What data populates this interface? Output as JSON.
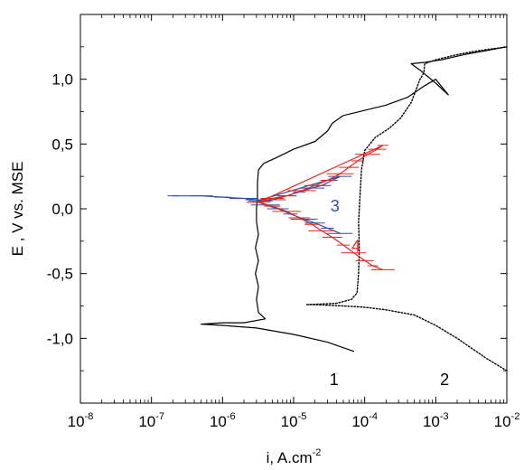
{
  "chart_data": {
    "type": "line",
    "title": "",
    "xlabel": "i, A.cm",
    "xlabel_exponent": "-2",
    "ylabel": "E , V vs. MSE",
    "x_scale": "log",
    "xlim": [
      1e-08,
      0.01
    ],
    "ylim": [
      -1.5,
      1.5
    ],
    "grid": false,
    "legend": "none",
    "x_ticks": [
      {
        "base": "10",
        "exp": "-8",
        "value": 1e-08
      },
      {
        "base": "10",
        "exp": "-7",
        "value": 1e-07
      },
      {
        "base": "10",
        "exp": "-6",
        "value": 1e-06
      },
      {
        "base": "10",
        "exp": "-5",
        "value": 1e-05
      },
      {
        "base": "10",
        "exp": "-4",
        "value": 0.0001
      },
      {
        "base": "10",
        "exp": "-3",
        "value": 0.001
      },
      {
        "base": "10",
        "exp": "-2",
        "value": 0.01
      }
    ],
    "y_ticks": [
      {
        "label": "-1,0",
        "value": -1.0
      },
      {
        "label": "-0,5",
        "value": -0.5
      },
      {
        "label": "0,0",
        "value": 0.0
      },
      {
        "label": "0,5",
        "value": 0.5
      },
      {
        "label": "1,0",
        "value": 1.0
      }
    ],
    "series": [
      {
        "label": "1",
        "color": "#000000",
        "style": "solid",
        "label_at": {
          "x": 3.2e-05,
          "y": -1.36
        },
        "points": [
          [
            7e-05,
            -1.1
          ],
          [
            3e-05,
            -1.03
          ],
          [
            1e-05,
            -0.97
          ],
          [
            3e-06,
            -0.92
          ],
          [
            1e-06,
            -0.9
          ],
          [
            5e-07,
            -0.89
          ],
          [
            1e-06,
            -0.88
          ],
          [
            2e-06,
            -0.88
          ],
          [
            4e-06,
            -0.85
          ],
          [
            3.2e-06,
            -0.8
          ],
          [
            3e-06,
            -0.7
          ],
          [
            3.2e-06,
            -0.6
          ],
          [
            2.9e-06,
            -0.5
          ],
          [
            3.2e-06,
            -0.4
          ],
          [
            2.9e-06,
            -0.3
          ],
          [
            3.2e-06,
            -0.2
          ],
          [
            3e-06,
            -0.1
          ],
          [
            3e-06,
            0.0
          ],
          [
            3.1e-06,
            0.1
          ],
          [
            3.1e-06,
            0.2
          ],
          [
            3.2e-06,
            0.3
          ],
          [
            3.8e-06,
            0.35
          ],
          [
            6e-06,
            0.4
          ],
          [
            1e-05,
            0.46
          ],
          [
            2e-05,
            0.52
          ],
          [
            3e-05,
            0.6
          ],
          [
            3.5e-05,
            0.66
          ],
          [
            5e-05,
            0.72
          ],
          [
            0.0001,
            0.76
          ],
          [
            0.0002,
            0.8
          ],
          [
            0.0004,
            0.86
          ],
          [
            0.0007,
            0.95
          ],
          [
            0.001,
            1.0
          ],
          [
            0.0015,
            0.88
          ],
          [
            0.001,
            0.97
          ],
          [
            0.0006,
            1.07
          ],
          [
            0.00045,
            1.12
          ],
          [
            0.0007,
            1.13
          ],
          [
            0.0012,
            1.15
          ],
          [
            0.0025,
            1.19
          ],
          [
            0.005,
            1.22
          ],
          [
            0.01,
            1.25
          ]
        ]
      },
      {
        "label": "2",
        "color": "#000000",
        "style": "dotted",
        "label_at": {
          "x": 0.00115,
          "y": -1.36
        },
        "points": [
          [
            0.01,
            -1.25
          ],
          [
            0.005,
            -1.15
          ],
          [
            0.002,
            -1.0
          ],
          [
            0.001,
            -0.9
          ],
          [
            0.0005,
            -0.82
          ],
          [
            0.0002,
            -0.78
          ],
          [
            0.0001,
            -0.76
          ],
          [
            5e-05,
            -0.75
          ],
          [
            2e-05,
            -0.74
          ],
          [
            1.5e-05,
            -0.74
          ],
          [
            4e-05,
            -0.73
          ],
          [
            6.5e-05,
            -0.7
          ],
          [
            7.8e-05,
            -0.65
          ],
          [
            8.2e-05,
            -0.5
          ],
          [
            8.4e-05,
            -0.3
          ],
          [
            8.2e-05,
            -0.1
          ],
          [
            8.6e-05,
            0.1
          ],
          [
            9e-05,
            0.3
          ],
          [
            0.0001,
            0.45
          ],
          [
            0.00014,
            0.55
          ],
          [
            0.00022,
            0.62
          ],
          [
            0.00032,
            0.7
          ],
          [
            0.00045,
            0.82
          ],
          [
            0.0006,
            1.0
          ],
          [
            0.00068,
            1.05
          ],
          [
            0.0007,
            1.12
          ],
          [
            0.001,
            1.15
          ],
          [
            0.002,
            1.19
          ],
          [
            0.004,
            1.22
          ],
          [
            0.01,
            1.25
          ]
        ]
      },
      {
        "label": "3",
        "color": "#2f4fa8",
        "style": "solid",
        "label_at": {
          "x": 3.3e-05,
          "y": -0.02
        },
        "points": [
          [
            2e-07,
            0.1
          ],
          [
            5e-07,
            0.1
          ],
          [
            1e-06,
            0.09
          ],
          [
            2e-06,
            0.08
          ],
          [
            3e-06,
            0.07
          ],
          [
            4e-06,
            0.06
          ],
          [
            5e-06,
            0.07
          ],
          [
            8e-06,
            0.1
          ],
          [
            1.2e-05,
            0.13
          ],
          [
            1.8e-05,
            0.16
          ],
          [
            2.5e-05,
            0.18
          ],
          [
            3.5e-05,
            0.22
          ],
          [
            4.5e-05,
            0.25
          ],
          [
            3e-06,
            0.06
          ],
          [
            4e-06,
            0.03
          ],
          [
            6e-06,
            0.0
          ],
          [
            9e-06,
            -0.04
          ],
          [
            1.4e-05,
            -0.08
          ],
          [
            2e-05,
            -0.11
          ],
          [
            3e-05,
            -0.15
          ],
          [
            4.5e-05,
            -0.19
          ]
        ]
      },
      {
        "label": "4",
        "color": "#e0271f",
        "style": "solid",
        "label_at": {
          "x": 6.5e-05,
          "y": -0.33
        },
        "points": [
          [
            3.2e-06,
            0.05
          ],
          [
            5e-06,
            0.08
          ],
          [
            8e-06,
            0.1
          ],
          [
            1.3e-05,
            0.14
          ],
          [
            2e-05,
            0.18
          ],
          [
            3e-05,
            0.22
          ],
          [
            4.5e-05,
            0.27
          ],
          [
            6e-05,
            0.32
          ],
          [
            8e-05,
            0.37
          ],
          [
            0.00011,
            0.42
          ],
          [
            0.00015,
            0.46
          ],
          [
            0.00018,
            0.49
          ],
          [
            3.2e-06,
            0.05
          ],
          [
            5e-06,
            0.02
          ],
          [
            8e-06,
            -0.02
          ],
          [
            1.2e-05,
            -0.07
          ],
          [
            1.8e-05,
            -0.12
          ],
          [
            2.5e-05,
            -0.17
          ],
          [
            3.5e-05,
            -0.22
          ],
          [
            5e-05,
            -0.28
          ],
          [
            7e-05,
            -0.34
          ],
          [
            0.0001,
            -0.4
          ],
          [
            0.00013,
            -0.44
          ],
          [
            0.00018,
            -0.47
          ]
        ]
      }
    ]
  }
}
